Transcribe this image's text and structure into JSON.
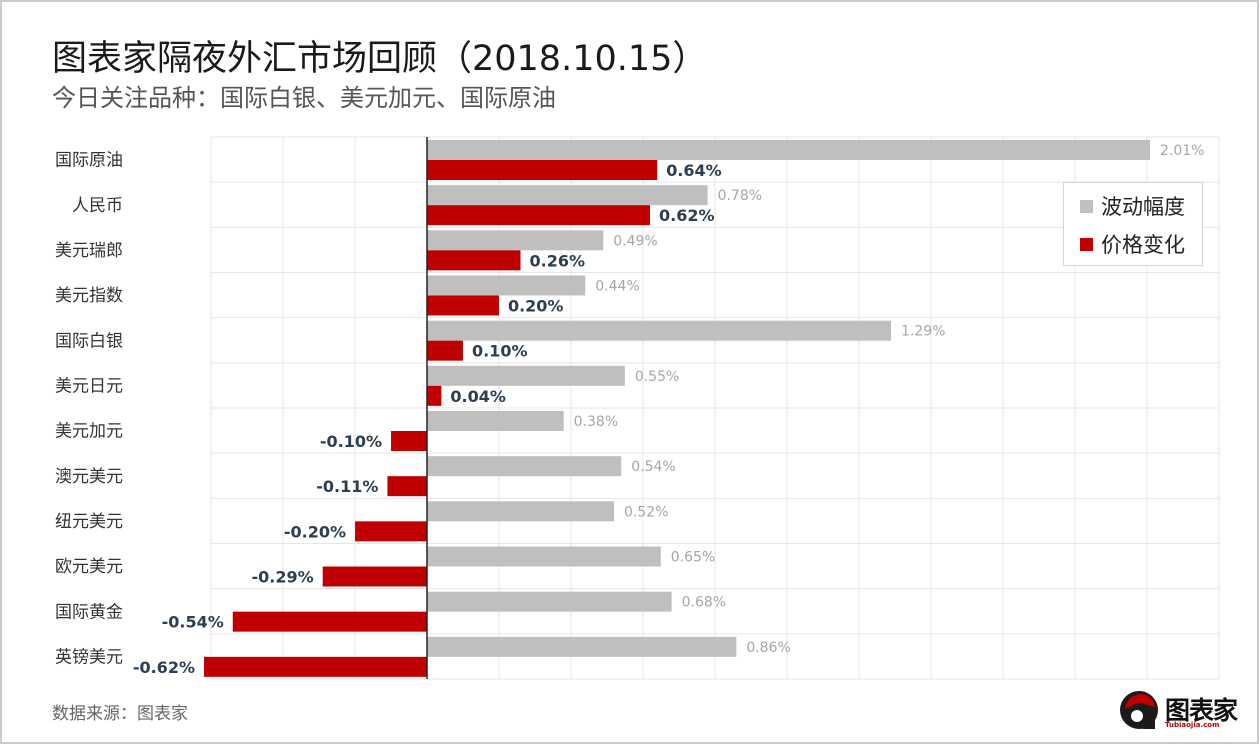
{
  "header": {
    "title": "图表家隔夜外汇市场回顾（2018.10.15）",
    "subtitle": "今日关注品种：国际白银、美元加元、国际原油"
  },
  "footer": {
    "source": "数据来源：图表家",
    "logo_text": "图表家",
    "logo_url": "Tubiaojia.com"
  },
  "colors": {
    "volatility": "#bfbfbf",
    "price_change": "#c00000",
    "grid": "#e6e6e6",
    "axis": "#222222",
    "volatility_label": "#a6a6a6",
    "change_label": "#2d3e50"
  },
  "chart_data": {
    "type": "bar",
    "orientation": "horizontal",
    "categories": [
      "国际原油",
      "人民币",
      "美元瑞郎",
      "美元指数",
      "国际白银",
      "美元日元",
      "美元加元",
      "澳元美元",
      "纽元美元",
      "欧元美元",
      "国际黄金",
      "英镑美元"
    ],
    "series": [
      {
        "name": "波动幅度",
        "values": [
          2.01,
          0.78,
          0.49,
          0.44,
          1.29,
          0.55,
          0.38,
          0.54,
          0.52,
          0.65,
          0.68,
          0.86
        ],
        "labels": [
          "2.01%",
          "0.78%",
          "0.49%",
          "0.44%",
          "1.29%",
          "0.55%",
          "0.38%",
          "0.54%",
          "0.52%",
          "0.65%",
          "0.68%",
          "0.86%"
        ]
      },
      {
        "name": "价格变化",
        "values": [
          0.64,
          0.62,
          0.26,
          0.2,
          0.1,
          0.04,
          -0.1,
          -0.11,
          -0.2,
          -0.29,
          -0.54,
          -0.62
        ],
        "labels": [
          "0.64%",
          "0.62%",
          "0.26%",
          "0.20%",
          "0.10%",
          "0.04%",
          "-0.10%",
          "-0.11%",
          "-0.20%",
          "-0.29%",
          "-0.54%",
          "-0.62%"
        ]
      }
    ],
    "xlim": [
      -0.6,
      2.2
    ],
    "unit": "%",
    "grid": true,
    "legend_position": "top-right"
  }
}
